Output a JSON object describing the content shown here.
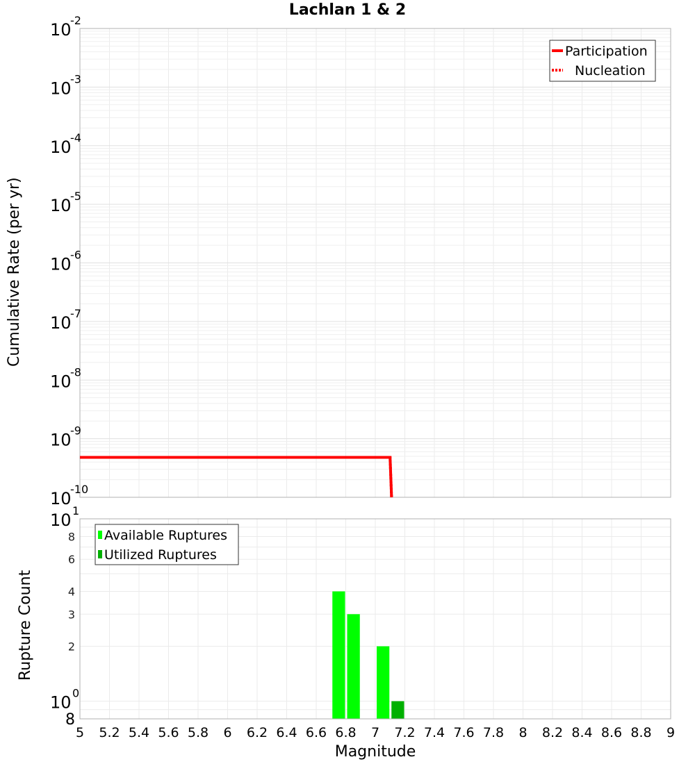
{
  "title": "Lachlan 1 & 2",
  "chart_data": [
    {
      "type": "line",
      "title": "Lachlan 1 & 2",
      "xlabel": "",
      "ylabel": "Cumulative Rate (per yr)",
      "yscale": "log",
      "ylim": [
        1e-10,
        0.01
      ],
      "xlim": [
        5,
        9
      ],
      "y_tick_exponents": [
        -2,
        -3,
        -4,
        -5,
        -6,
        -7,
        -8,
        -9,
        -10
      ],
      "grid": true,
      "legend_position": "top-right",
      "series": [
        {
          "name": "Participation",
          "style": "solid",
          "color": "#ff0000",
          "x": [
            5.0,
            7.1,
            7.11
          ],
          "y": [
            4.8e-10,
            4.8e-10,
            1e-10
          ]
        },
        {
          "name": "Nucleation",
          "style": "dotted",
          "color": "#ff0000",
          "x": [
            5.0,
            7.1,
            7.11
          ],
          "y": [
            4.8e-10,
            4.8e-10,
            1e-10
          ]
        }
      ]
    },
    {
      "type": "bar",
      "xlabel": "Magnitude",
      "ylabel": "Rupture Count",
      "yscale": "log",
      "ylim": [
        0.8,
        10
      ],
      "xlim": [
        5,
        9
      ],
      "x_ticks": [
        "5",
        "5.2",
        "5.4",
        "5.6",
        "5.8",
        "6",
        "6.2",
        "6.4",
        "6.6",
        "6.8",
        "7",
        "7.2",
        "7.4",
        "7.6",
        "7.8",
        "8",
        "8.2",
        "8.4",
        "8.6",
        "8.8",
        "9"
      ],
      "y_ticks": [
        {
          "value": 10,
          "label": "10",
          "sup": "1"
        },
        {
          "value": 8,
          "label": "8"
        },
        {
          "value": 6,
          "label": "6"
        },
        {
          "value": 4,
          "label": "4"
        },
        {
          "value": 3,
          "label": "3"
        },
        {
          "value": 2,
          "label": "2"
        },
        {
          "value": 1,
          "label": "10",
          "sup": "0"
        },
        {
          "value": 0.8,
          "label": "8"
        }
      ],
      "grid": true,
      "legend_position": "top-left",
      "series": [
        {
          "name": "Available Ruptures",
          "color": "#00ff00",
          "bins": [
            {
              "x0": 6.7,
              "x1": 6.8,
              "value": 4
            },
            {
              "x0": 6.8,
              "x1": 6.9,
              "value": 3
            },
            {
              "x0": 7.0,
              "x1": 7.1,
              "value": 2
            }
          ]
        },
        {
          "name": "Utilized Ruptures",
          "color": "#00b000",
          "bins": [
            {
              "x0": 7.1,
              "x1": 7.2,
              "value": 1
            }
          ]
        }
      ]
    }
  ],
  "labels": {
    "top_ylabel": "Cumulative Rate (per yr)",
    "bottom_ylabel": "Rupture Count",
    "xlabel": "Magnitude"
  }
}
